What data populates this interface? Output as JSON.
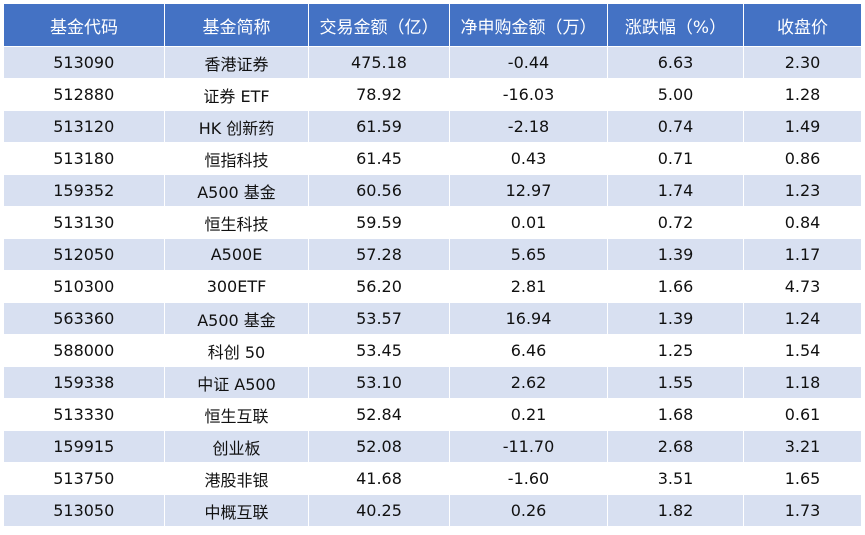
{
  "table": {
    "headers": [
      "基金代码",
      "基金简称",
      "交易金额（亿）",
      "净申购金额（万）",
      "涨跌幅（%）",
      "收盘价"
    ],
    "rows": [
      [
        "513090",
        "香港证券",
        "475.18",
        "-0.44",
        "6.63",
        "2.30"
      ],
      [
        "512880",
        "证券 ETF",
        "78.92",
        "-16.03",
        "5.00",
        "1.28"
      ],
      [
        "513120",
        "HK 创新药",
        "61.59",
        "-2.18",
        "0.74",
        "1.49"
      ],
      [
        "513180",
        "恒指科技",
        "61.45",
        "0.43",
        "0.71",
        "0.86"
      ],
      [
        "159352",
        "A500 基金",
        "60.56",
        "12.97",
        "1.74",
        "1.23"
      ],
      [
        "513130",
        "恒生科技",
        "59.59",
        "0.01",
        "0.72",
        "0.84"
      ],
      [
        "512050",
        "A500E",
        "57.28",
        "5.65",
        "1.39",
        "1.17"
      ],
      [
        "510300",
        "300ETF",
        "56.20",
        "2.81",
        "1.66",
        "4.73"
      ],
      [
        "563360",
        "A500 基金",
        "53.57",
        "16.94",
        "1.39",
        "1.24"
      ],
      [
        "588000",
        "科创 50",
        "53.45",
        "6.46",
        "1.25",
        "1.54"
      ],
      [
        "159338",
        "中证 A500",
        "53.10",
        "2.62",
        "1.55",
        "1.18"
      ],
      [
        "513330",
        "恒生互联",
        "52.84",
        "0.21",
        "1.68",
        "0.61"
      ],
      [
        "159915",
        "创业板",
        "52.08",
        "-11.70",
        "2.68",
        "3.21"
      ],
      [
        "513750",
        "港股非银",
        "41.68",
        "-1.60",
        "3.51",
        "1.65"
      ],
      [
        "513050",
        "中概互联",
        "40.25",
        "0.26",
        "1.82",
        "1.73"
      ]
    ]
  },
  "colors": {
    "header_bg": "#4472c4",
    "header_text": "#ffffff",
    "band_bg": "#d8e0f1",
    "row_bg": "#ffffff"
  }
}
